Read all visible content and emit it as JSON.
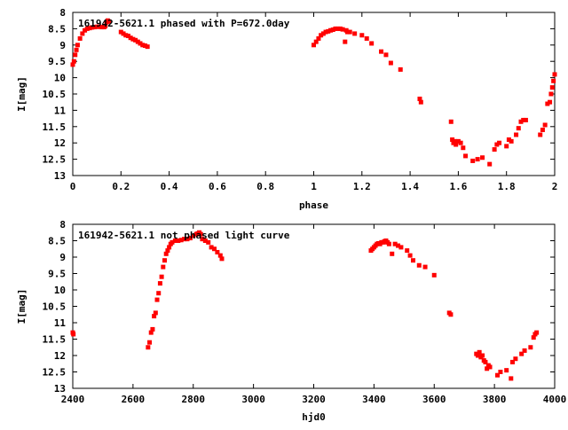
{
  "chart_data": [
    {
      "type": "scatter",
      "title": "161942-5621.1 phased with P=672.0day",
      "xlabel": "phase",
      "ylabel": "I[mag]",
      "xlim": [
        0,
        2
      ],
      "ylim": [
        8,
        13
      ],
      "y_inverted": true,
      "xticks": [
        "0",
        "0.2",
        "0.4",
        "0.6",
        "0.8",
        "1",
        "1.2",
        "1.4",
        "1.6",
        "1.8",
        "2"
      ],
      "xtick_values": [
        0,
        0.2,
        0.4,
        0.6,
        0.8,
        1.0,
        1.2,
        1.4,
        1.6,
        1.8,
        2.0
      ],
      "yticks": [
        "8",
        "8.5",
        "9",
        "9.5",
        "10",
        "10.5",
        "11",
        "11.5",
        "12",
        "12.5",
        "13"
      ],
      "ytick_values": [
        8,
        8.5,
        9,
        9.5,
        10,
        10.5,
        11,
        11.5,
        12,
        12.5,
        13
      ],
      "marker_color": "#ff0000",
      "grid": false,
      "x": [
        0.0,
        0.005,
        0.01,
        0.015,
        0.02,
        0.03,
        0.04,
        0.05,
        0.06,
        0.07,
        0.08,
        0.09,
        0.1,
        0.11,
        0.12,
        0.13,
        0.135,
        0.14,
        0.145,
        0.15,
        0.2,
        0.21,
        0.22,
        0.23,
        0.24,
        0.25,
        0.26,
        0.27,
        0.28,
        0.29,
        0.3,
        0.31,
        1.0,
        1.01,
        1.02,
        1.03,
        1.04,
        1.05,
        1.06,
        1.07,
        1.08,
        1.09,
        1.1,
        1.11,
        1.12,
        1.13,
        1.135,
        1.14,
        1.15,
        1.17,
        1.2,
        1.22,
        1.24,
        1.28,
        1.3,
        1.32,
        1.36,
        1.44,
        1.445,
        1.57,
        1.575,
        1.58,
        1.585,
        1.59,
        1.6,
        1.61,
        1.62,
        1.63,
        1.66,
        1.68,
        1.7,
        1.73,
        1.75,
        1.76,
        1.77,
        1.8,
        1.81,
        1.82,
        1.84,
        1.85,
        1.86,
        1.87,
        1.88,
        1.94,
        1.95,
        1.96,
        1.97,
        1.98,
        1.985,
        1.99,
        1.995,
        2.0
      ],
      "y": [
        9.6,
        9.5,
        9.3,
        9.15,
        9.0,
        8.8,
        8.65,
        8.55,
        8.5,
        8.48,
        8.46,
        8.45,
        8.44,
        8.44,
        8.45,
        8.45,
        8.42,
        8.3,
        8.25,
        8.28,
        8.6,
        8.65,
        8.7,
        8.72,
        8.78,
        8.82,
        8.85,
        8.9,
        8.95,
        9.0,
        9.02,
        9.05,
        9.0,
        8.9,
        8.8,
        8.7,
        8.65,
        8.6,
        8.58,
        8.55,
        8.53,
        8.5,
        8.5,
        8.5,
        8.52,
        8.9,
        8.55,
        8.6,
        8.6,
        8.65,
        8.7,
        8.8,
        8.95,
        9.2,
        9.3,
        9.55,
        9.75,
        10.65,
        10.75,
        11.35,
        11.9,
        12.0,
        11.95,
        12.05,
        11.95,
        12.0,
        12.15,
        12.4,
        12.55,
        12.5,
        12.45,
        12.65,
        12.2,
        12.05,
        12.0,
        12.1,
        11.9,
        11.95,
        11.75,
        11.55,
        11.35,
        11.3,
        11.3,
        11.75,
        11.6,
        11.45,
        10.8,
        10.75,
        10.5,
        10.3,
        10.1,
        9.9
      ]
    },
    {
      "type": "scatter",
      "title": "161942-5621.1 not phased light curve",
      "xlabel": "hjd0",
      "ylabel": "I[mag]",
      "xlim": [
        2400,
        4000
      ],
      "ylim": [
        8,
        13
      ],
      "y_inverted": true,
      "xticks": [
        "2400",
        "2600",
        "2800",
        "3000",
        "3200",
        "3400",
        "3600",
        "3800",
        "4000"
      ],
      "xtick_values": [
        2400,
        2600,
        2800,
        3000,
        3200,
        3400,
        3600,
        3800,
        4000
      ],
      "yticks": [
        "8",
        "8.5",
        "9",
        "9.5",
        "10",
        "10.5",
        "11",
        "11.5",
        "12",
        "12.5",
        "13"
      ],
      "ytick_values": [
        8,
        8.5,
        9,
        9.5,
        10,
        10.5,
        11,
        11.5,
        12,
        12.5,
        13
      ],
      "marker_color": "#ff0000",
      "grid": false,
      "x": [
        2400,
        2402,
        2650,
        2655,
        2660,
        2665,
        2670,
        2675,
        2680,
        2685,
        2690,
        2695,
        2700,
        2705,
        2710,
        2715,
        2720,
        2725,
        2730,
        2740,
        2750,
        2760,
        2770,
        2780,
        2790,
        2800,
        2810,
        2815,
        2820,
        2825,
        2830,
        2840,
        2850,
        2860,
        2870,
        2880,
        2890,
        2895,
        3390,
        3395,
        3400,
        3405,
        3410,
        3415,
        3420,
        3425,
        3430,
        3435,
        3440,
        3445,
        3450,
        3460,
        3470,
        3480,
        3490,
        3510,
        3520,
        3530,
        3550,
        3570,
        3600,
        3650,
        3655,
        3740,
        3745,
        3750,
        3755,
        3760,
        3765,
        3770,
        3775,
        3780,
        3785,
        3810,
        3820,
        3840,
        3855,
        3860,
        3870,
        3890,
        3900,
        3920,
        3930,
        3935,
        3940
      ],
      "y": [
        11.3,
        11.35,
        11.75,
        11.6,
        11.3,
        11.2,
        10.8,
        10.7,
        10.3,
        10.1,
        9.8,
        9.6,
        9.3,
        9.1,
        8.9,
        8.8,
        8.7,
        8.6,
        8.55,
        8.5,
        8.5,
        8.48,
        8.45,
        8.45,
        8.42,
        8.35,
        8.3,
        8.28,
        8.25,
        8.3,
        8.45,
        8.5,
        8.55,
        8.7,
        8.75,
        8.85,
        8.95,
        9.05,
        8.8,
        8.75,
        8.7,
        8.65,
        8.6,
        8.58,
        8.6,
        8.55,
        8.55,
        8.52,
        8.5,
        8.55,
        8.6,
        8.9,
        8.6,
        8.65,
        8.7,
        8.8,
        8.95,
        9.1,
        9.25,
        9.3,
        9.55,
        10.7,
        10.75,
        11.95,
        12.0,
        11.9,
        12.05,
        12.0,
        12.15,
        12.2,
        12.4,
        12.3,
        12.35,
        12.6,
        12.5,
        12.45,
        12.7,
        12.2,
        12.1,
        11.95,
        11.85,
        11.75,
        11.45,
        11.35,
        11.3
      ]
    }
  ]
}
